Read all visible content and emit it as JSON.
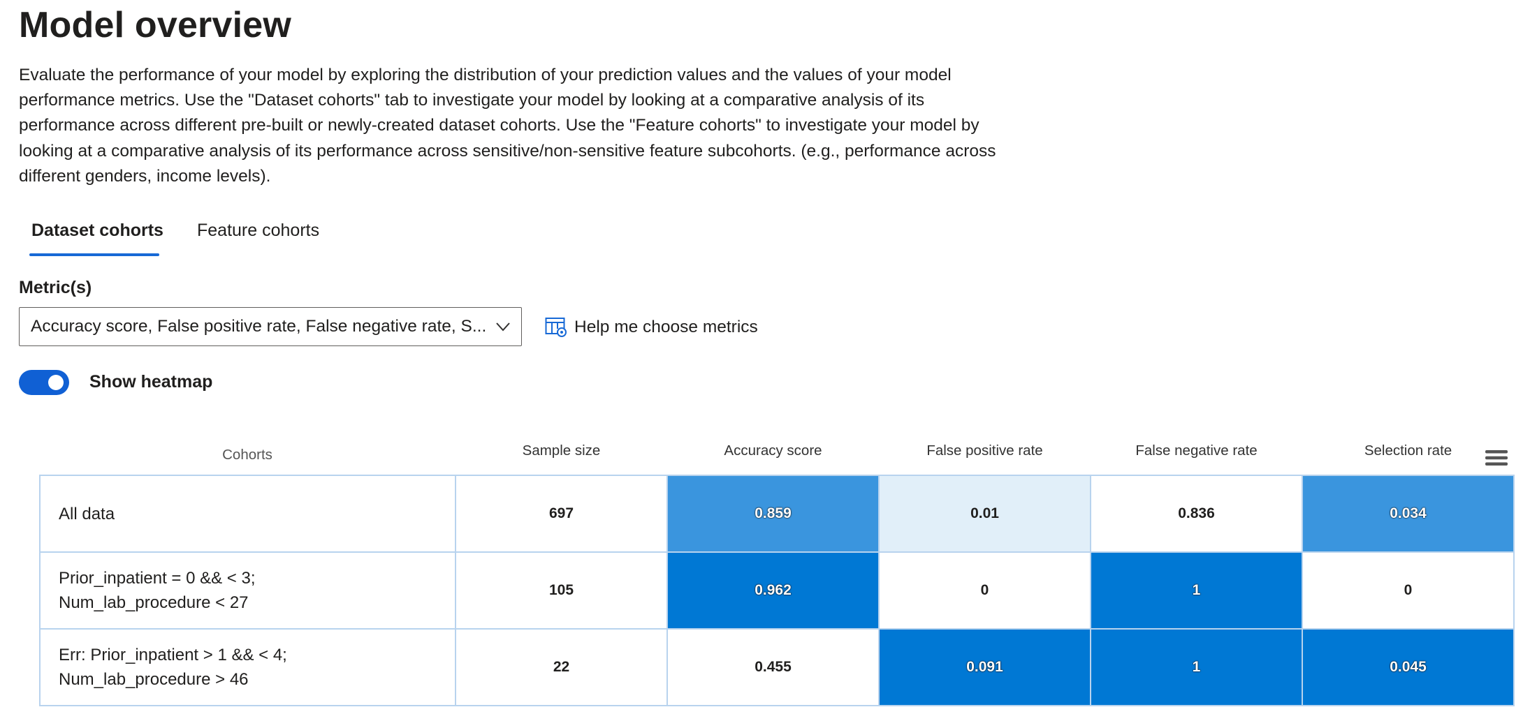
{
  "page": {
    "title": "Model overview",
    "description": "Evaluate the performance of your model by exploring the distribution of your prediction values and the values of your model performance metrics. Use the \"Dataset cohorts\" tab to investigate your model by looking at a comparative analysis of its performance across different pre-built or newly-created dataset cohorts. Use the \"Feature cohorts\" to investigate your model by looking at a comparative analysis of its performance across sensitive/non-sensitive feature subcohorts. (e.g., performance across different genders, income levels)."
  },
  "tabs": [
    {
      "label": "Dataset cohorts",
      "active": true
    },
    {
      "label": "Feature cohorts",
      "active": false
    }
  ],
  "metrics": {
    "label": "Metric(s)",
    "selected": "Accuracy score, False positive rate, False negative rate, S...",
    "help_label": "Help me choose metrics"
  },
  "heatmap_toggle": {
    "label": "Show heatmap",
    "on": true
  },
  "table": {
    "columns": [
      "Cohorts",
      "Sample size",
      "Accuracy score",
      "False positive rate",
      "False negative rate",
      "Selection rate"
    ],
    "rows": [
      {
        "cohort": "All data",
        "values": [
          "697",
          "0.859",
          "0.01",
          "0.836",
          "0.034"
        ],
        "colors": [
          "#ffffff",
          "#3a95de",
          "#e1eff9",
          "#ffffff",
          "#3a95de"
        ],
        "dark_text": [
          false,
          true,
          false,
          false,
          true
        ]
      },
      {
        "cohort": "Prior_inpatient = 0 && < 3; Num_lab_procedure < 27",
        "cohort_lines": [
          "Prior_inpatient = 0 && < 3;",
          "Num_lab_procedure < 27"
        ],
        "values": [
          "105",
          "0.962",
          "0",
          "1",
          "0"
        ],
        "colors": [
          "#ffffff",
          "#0078d4",
          "#ffffff",
          "#0078d4",
          "#ffffff"
        ],
        "dark_text": [
          false,
          true,
          false,
          true,
          false
        ]
      },
      {
        "cohort": "Err: Prior_inpatient > 1 && < 4; Num_lab_procedure > 46",
        "cohort_lines": [
          "Err: Prior_inpatient > 1 && < 4;",
          "Num_lab_procedure > 46"
        ],
        "values": [
          "22",
          "0.455",
          "0.091",
          "1",
          "0.045"
        ],
        "colors": [
          "#ffffff",
          "#ffffff",
          "#0078d4",
          "#0078d4",
          "#0078d4"
        ],
        "dark_text": [
          false,
          false,
          true,
          true,
          true
        ]
      }
    ]
  },
  "icons": {
    "dropdown": "chevron-down-icon",
    "help": "table-settings-icon",
    "menu": "hamburger-menu-icon"
  },
  "colors": {
    "accent": "#1769d6",
    "heat_max": "#0078d4",
    "heat_mid": "#3a95de",
    "heat_low": "#e1eff9",
    "grid_border": "#b8d3ee"
  }
}
